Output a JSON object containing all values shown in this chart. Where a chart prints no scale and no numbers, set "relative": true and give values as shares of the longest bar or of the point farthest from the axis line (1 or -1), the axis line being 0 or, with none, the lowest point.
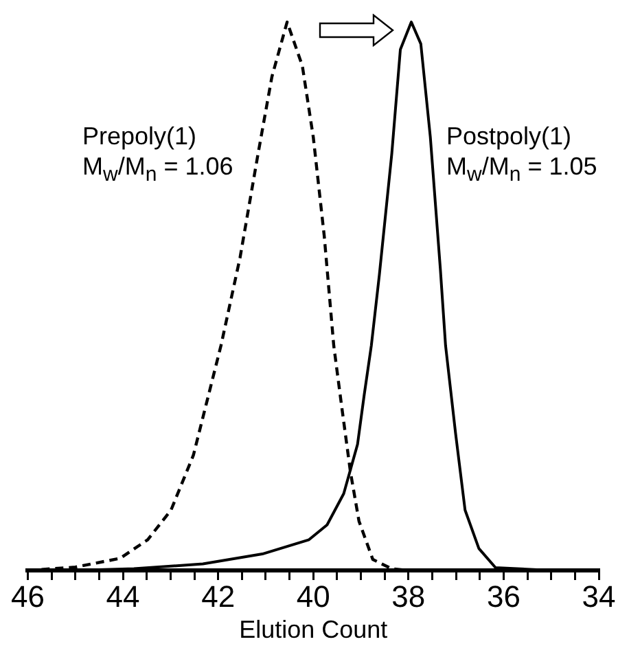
{
  "chart_data": {
    "type": "line",
    "relative": true,
    "xlabel": "Elution Count",
    "xlim": [
      46,
      34
    ],
    "xticks": [
      46,
      {
        "value": 45.5,
        "label": null
      },
      {
        "value": 45,
        "label": null
      },
      {
        "value": 44.5,
        "label": null
      },
      44,
      {
        "value": 43.5,
        "label": null
      },
      {
        "value": 43,
        "label": null
      },
      {
        "value": 42.5,
        "label": null
      },
      42,
      {
        "value": 41.5,
        "label": null
      },
      {
        "value": 41,
        "label": null
      },
      {
        "value": 40.5,
        "label": null
      },
      40,
      {
        "value": 39.5,
        "label": null
      },
      {
        "value": 39,
        "label": null
      },
      {
        "value": 38.5,
        "label": null
      },
      38,
      {
        "value": 37.5,
        "label": null
      },
      {
        "value": 37,
        "label": null
      },
      {
        "value": 36.5,
        "label": null
      },
      36,
      {
        "value": 35.5,
        "label": null
      },
      {
        "value": 35,
        "label": null
      },
      {
        "value": 34.5,
        "label": null
      },
      34
    ],
    "series": [
      {
        "name": "Prepoly(1)",
        "color": "#000000",
        "line_style": "dashed",
        "x": [
          46,
          45,
          44.06,
          43.48,
          42.99,
          42.52,
          42.23,
          41.94,
          41.54,
          41.16,
          40.87,
          40.55,
          40.23,
          40,
          39.77,
          39.57,
          39.42,
          39.22,
          39.04,
          38.75,
          38.35,
          38
        ],
        "values": [
          0,
          0.006,
          0.022,
          0.056,
          0.11,
          0.21,
          0.31,
          0.41,
          0.57,
          0.76,
          0.9,
          1,
          0.92,
          0.79,
          0.61,
          0.41,
          0.31,
          0.18,
          0.09,
          0.02,
          0.003,
          0
        ]
      },
      {
        "name": "Postpoly(1)",
        "color": "#000000",
        "line_style": "solid",
        "x": [
          45,
          43.77,
          42.32,
          41.07,
          40.09,
          39.71,
          39.36,
          39.07,
          38.93,
          38.78,
          38.61,
          38.35,
          38.17,
          37.94,
          37.74,
          37.54,
          37.33,
          37.22,
          37.01,
          36.81,
          36.52,
          36.17,
          35.01
        ],
        "values": [
          0,
          0.003,
          0.012,
          0.03,
          0.056,
          0.083,
          0.14,
          0.23,
          0.32,
          0.41,
          0.54,
          0.76,
          0.95,
          1,
          0.96,
          0.79,
          0.55,
          0.41,
          0.25,
          0.11,
          0.04,
          0.005,
          0
        ]
      }
    ],
    "annotations": [
      "M$_{w}$/M$_{n}$ = 1.06",
      "M$_{w}$/M$_{n}$ = 1.05"
    ],
    "legend": false,
    "grid": false,
    "marker": "none"
  }
}
